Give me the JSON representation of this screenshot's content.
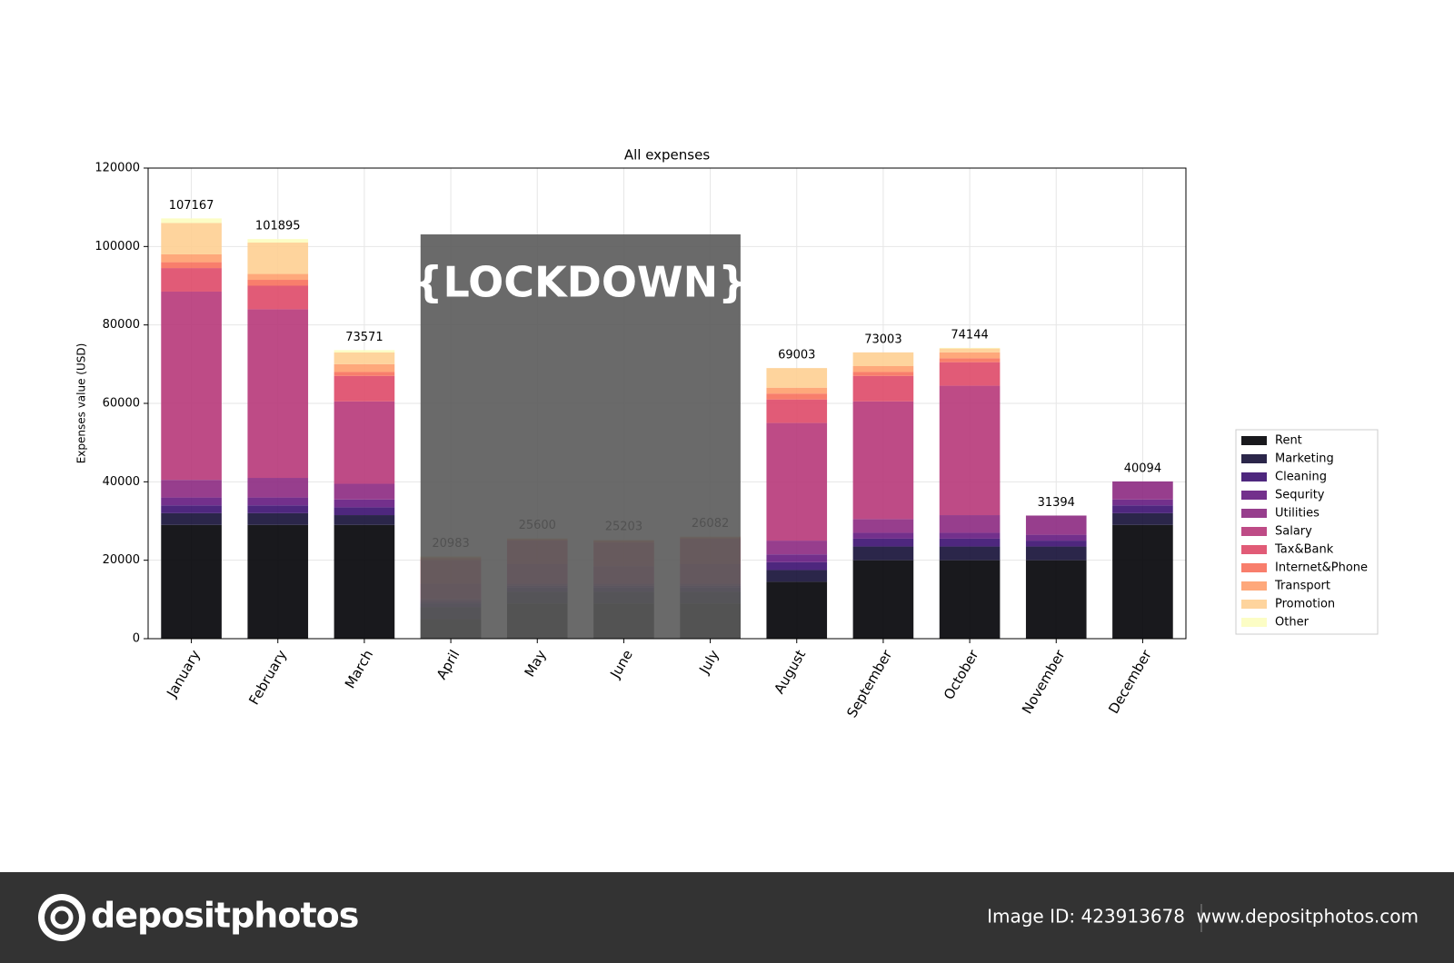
{
  "chart_data": {
    "type": "bar",
    "stacked": true,
    "title": "All expenses",
    "y_label": "Expenses value (USD)",
    "categories": [
      "January",
      "February",
      "March",
      "April",
      "May",
      "June",
      "July",
      "August",
      "September",
      "October",
      "November",
      "December"
    ],
    "series": [
      {
        "name": "Rent",
        "color": "#000004",
        "values": [
          29000,
          29000,
          29000,
          5000,
          9000,
          9000,
          9000,
          14500,
          20000,
          20000,
          20000,
          29000
        ]
      },
      {
        "name": "Marketing",
        "color": "#140e36",
        "values": [
          3000,
          3000,
          2500,
          3000,
          3000,
          3000,
          3000,
          3000,
          3500,
          3500,
          3500,
          3000
        ]
      },
      {
        "name": "Cleaning",
        "color": "#3b0f70",
        "values": [
          2000,
          2000,
          2000,
          1000,
          1000,
          1000,
          1000,
          2000,
          2000,
          2000,
          1500,
          2000
        ]
      },
      {
        "name": "Sequrity",
        "color": "#641a80",
        "values": [
          2000,
          2000,
          2000,
          500,
          500,
          500,
          500,
          2000,
          1500,
          1500,
          1500,
          1500
        ]
      },
      {
        "name": "Utilities",
        "color": "#8c2981",
        "values": [
          4500,
          5000,
          4000,
          500,
          500,
          500,
          500,
          3500,
          3500,
          4500,
          4894,
          4594
        ]
      },
      {
        "name": "Salary",
        "color": "#b73779",
        "values": [
          48000,
          43000,
          21000,
          4000,
          5000,
          4500,
          5000,
          30000,
          30000,
          33000,
          0,
          0
        ]
      },
      {
        "name": "Tax&Bank",
        "color": "#de4968",
        "values": [
          6000,
          6000,
          6500,
          6000,
          6000,
          6000,
          6500,
          6000,
          6500,
          6000,
          0,
          0
        ]
      },
      {
        "name": "Internet&Phone",
        "color": "#f7705c",
        "values": [
          1500,
          1500,
          1000,
          500,
          300,
          400,
          300,
          1500,
          1000,
          1000,
          0,
          0
        ]
      },
      {
        "name": "Transport",
        "color": "#fe9f6d",
        "values": [
          2000,
          1500,
          2000,
          300,
          200,
          200,
          200,
          1500,
          1500,
          1500,
          0,
          0
        ]
      },
      {
        "name": "Promotion",
        "color": "#fecf92",
        "values": [
          8000,
          8000,
          3000,
          183,
          100,
          103,
          82,
          5000,
          3500,
          1000,
          0,
          0
        ]
      },
      {
        "name": "Other",
        "color": "#fcfdbf",
        "values": [
          1167,
          895,
          571,
          0,
          0,
          0,
          0,
          3,
          3,
          144,
          0,
          0
        ]
      }
    ],
    "totals": [
      107167,
      101895,
      73571,
      20983,
      25600,
      25203,
      26082,
      69003,
      73003,
      74144,
      31394,
      40094
    ],
    "ylim": [
      0,
      120000
    ],
    "yticks": [
      0,
      20000,
      40000,
      60000,
      80000,
      100000,
      120000
    ],
    "grid": true,
    "legend": "right",
    "annotation": "{LOCKDOWN}"
  },
  "footer": {
    "brand": "depositphotos",
    "image_id": "Image ID: 423913678",
    "url": "www.depositphotos.com"
  }
}
